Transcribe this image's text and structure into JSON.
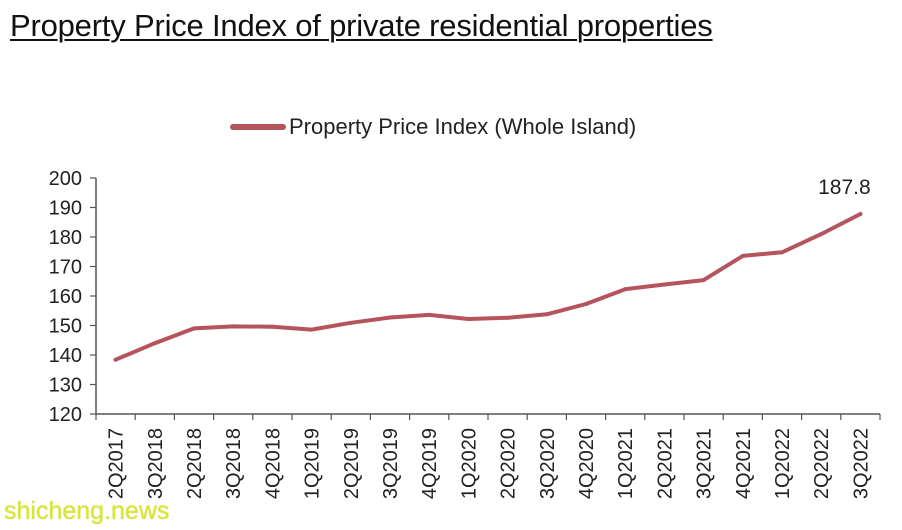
{
  "page": {
    "title": "Property Price Index of private residential properties",
    "watermark": "shicheng.news"
  },
  "colors": {
    "line": "#b5545c",
    "axis": "#555555",
    "watermark": "#d8e636"
  },
  "chart_data": {
    "type": "line",
    "title": "",
    "xlabel": "",
    "ylabel": "",
    "categories": [
      "2Q2017",
      "3Q2018",
      "2Q2018",
      "3Q2018",
      "4Q2018",
      "1Q2019",
      "2Q2019",
      "3Q2019",
      "4Q2019",
      "1Q2020",
      "2Q2020",
      "3Q2020",
      "4Q2020",
      "1Q2021",
      "2Q2021",
      "3Q2021",
      "4Q2021",
      "1Q2022",
      "2Q2022",
      "3Q2022"
    ],
    "series": [
      {
        "name": "Property Price Index (Whole Island)",
        "values": [
          138.4,
          144.0,
          149.0,
          149.7,
          149.6,
          148.6,
          150.9,
          152.7,
          153.6,
          152.2,
          152.6,
          153.8,
          157.3,
          162.3,
          163.9,
          165.4,
          173.6,
          174.8,
          181.0,
          187.8
        ]
      }
    ],
    "ylim": [
      120,
      200
    ],
    "yticks": [
      120,
      130,
      140,
      150,
      160,
      170,
      180,
      190,
      200
    ],
    "data_labels": [
      {
        "index": 19,
        "text": "187.8"
      }
    ],
    "grid": false,
    "legend": "top-center"
  }
}
